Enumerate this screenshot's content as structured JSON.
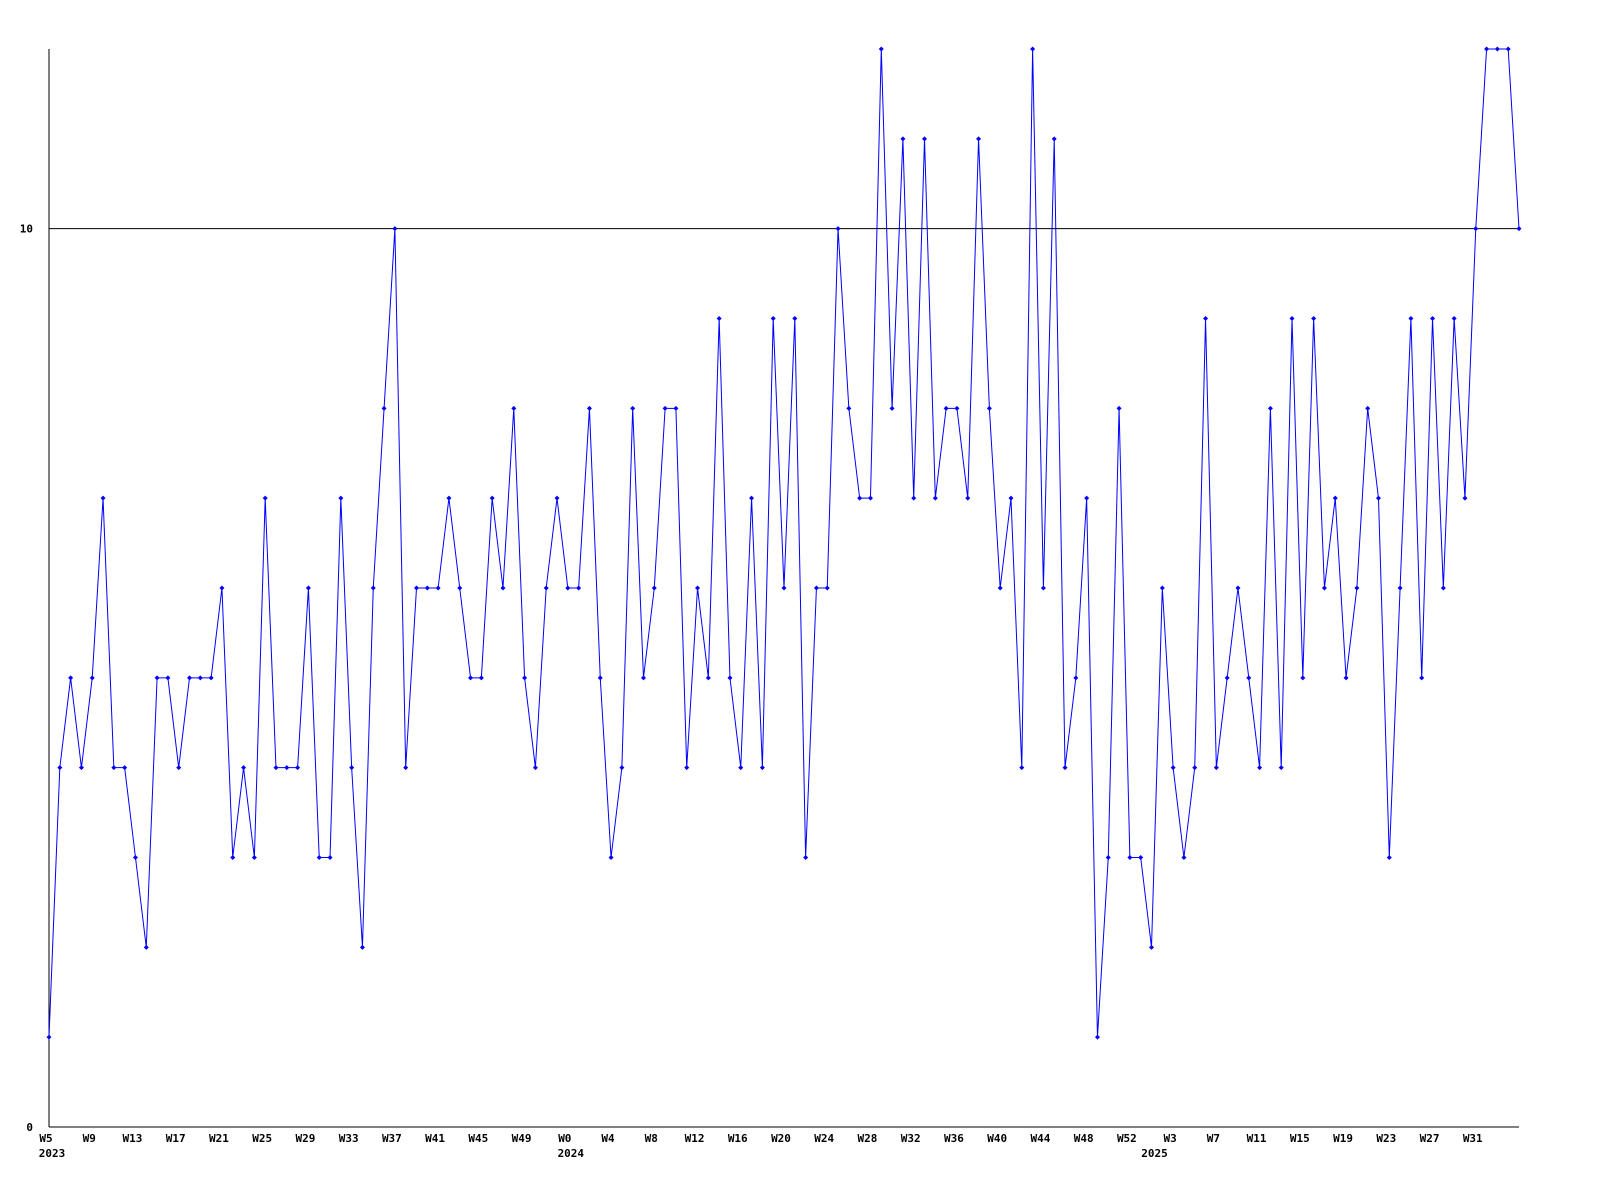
{
  "chart_data": {
    "type": "line",
    "color": "#0000ff",
    "grid": true,
    "ylim": [
      0,
      12
    ],
    "yticks": [
      0,
      10
    ],
    "categories": [
      "W5",
      null,
      null,
      null,
      "W9",
      null,
      null,
      null,
      "W13",
      null,
      null,
      null,
      "W17",
      null,
      null,
      null,
      "W21",
      null,
      null,
      null,
      "W25",
      null,
      null,
      null,
      "W29",
      null,
      null,
      null,
      "W33",
      null,
      null,
      null,
      "W37",
      null,
      null,
      null,
      "W41",
      null,
      null,
      null,
      "W45",
      null,
      null,
      null,
      "W49",
      null,
      null,
      null,
      "W0",
      null,
      null,
      null,
      "W4",
      null,
      null,
      null,
      "W8",
      null,
      null,
      null,
      "W12",
      null,
      null,
      null,
      "W16",
      null,
      null,
      null,
      "W20",
      null,
      null,
      null,
      "W24",
      null,
      null,
      null,
      "W28",
      null,
      null,
      null,
      "W32",
      null,
      null,
      null,
      "W36",
      null,
      null,
      null,
      "W40",
      null,
      null,
      null,
      "W44",
      null,
      null,
      null,
      "W48",
      null,
      null,
      null,
      "W52",
      null,
      null,
      null,
      "W3",
      null,
      null,
      null,
      "W7",
      null,
      null,
      null,
      "W11",
      null,
      null,
      null,
      "W15",
      null,
      null,
      null,
      "W19",
      null,
      null,
      null,
      "W23",
      null,
      null,
      null,
      "W27",
      null,
      null,
      null,
      "W31",
      null,
      null,
      null,
      null
    ],
    "year_labels": [
      "2023",
      null,
      null,
      null,
      null,
      null,
      null,
      null,
      null,
      null,
      null,
      null,
      null,
      null,
      null,
      null,
      null,
      null,
      null,
      null,
      null,
      null,
      null,
      null,
      null,
      null,
      null,
      null,
      null,
      null,
      null,
      null,
      null,
      null,
      null,
      null,
      null,
      null,
      null,
      null,
      null,
      null,
      null,
      null,
      null,
      null,
      null,
      null,
      "2024",
      null,
      null,
      null,
      null,
      null,
      null,
      null,
      null,
      null,
      null,
      null,
      null,
      null,
      null,
      null,
      null,
      null,
      null,
      null,
      null,
      null,
      null,
      null,
      null,
      null,
      null,
      null,
      null,
      null,
      null,
      null,
      null,
      null,
      null,
      null,
      null,
      null,
      null,
      null,
      null,
      null,
      null,
      null,
      null,
      null,
      null,
      null,
      null,
      null,
      null,
      null,
      null,
      null,
      "2025",
      null,
      null,
      null,
      null,
      null,
      null,
      null,
      null,
      null,
      null,
      null,
      null,
      null,
      null,
      null,
      null,
      null,
      null,
      null,
      null,
      null,
      null,
      null,
      null,
      null,
      null,
      null,
      null,
      null,
      null,
      null,
      null,
      null,
      null,
      null
    ],
    "values": [
      1,
      4,
      5,
      4,
      5,
      7,
      4,
      4,
      3,
      2,
      5,
      5,
      4,
      5,
      5,
      5,
      6,
      3,
      4,
      3,
      7,
      4,
      4,
      4,
      6,
      3,
      3,
      7,
      4,
      2,
      6,
      8,
      10,
      4,
      6,
      6,
      6,
      7,
      6,
      5,
      5,
      7,
      6,
      8,
      5,
      4,
      6,
      7,
      6,
      6,
      8,
      5,
      3,
      4,
      8,
      5,
      6,
      8,
      8,
      4,
      6,
      5,
      9,
      5,
      4,
      7,
      4,
      9,
      6,
      9,
      3,
      6,
      6,
      10,
      8,
      7,
      7,
      12,
      8,
      11,
      7,
      11,
      7,
      8,
      8,
      7,
      11,
      8,
      6,
      7,
      4,
      12,
      6,
      11,
      4,
      5,
      7,
      1,
      3,
      8,
      3,
      3,
      2,
      6,
      4,
      3,
      4,
      9,
      4,
      5,
      6,
      5,
      4,
      8,
      4,
      9,
      5,
      9,
      6,
      7,
      5,
      6,
      8,
      7,
      3,
      6,
      9,
      5,
      9,
      6,
      9,
      7,
      10,
      12,
      12,
      12,
      10
    ]
  }
}
